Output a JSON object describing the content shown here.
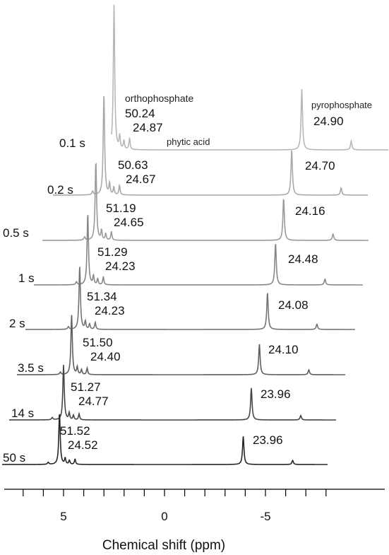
{
  "chart_data": {
    "type": "line",
    "xlabel": "Chemical shift (ppm)",
    "xlim": [
      8,
      -8
    ],
    "x_ticks": [
      5,
      0,
      -5
    ],
    "x_tick_labels": [
      "5",
      "0",
      "-5"
    ],
    "annotations": {
      "orthophosphate": "orthophosphate",
      "phytic_acid": "phytic acid",
      "pyrophosphate": "pyrophosphate"
    },
    "series": [
      {
        "name": "0.1 s",
        "color": "#b8b8b8",
        "ortho_ppm": 2.5,
        "pyro_ppm": -6.8,
        "ortho_pct": "50.24",
        "phytic_pct": "24.87",
        "pyro_pct": "24.90",
        "ortho_height": 1.0,
        "pyro_height": 0.42
      },
      {
        "name": "0.2 s",
        "color": "#a9a9a9",
        "ortho_ppm": 3.0,
        "pyro_ppm": -6.3,
        "ortho_pct": "50.63",
        "phytic_pct": "24.67",
        "pyro_pct": "24.70",
        "ortho_height": 0.82,
        "pyro_height": 0.37
      },
      {
        "name": "0.5 s",
        "color": "#9a9a9a",
        "ortho_ppm": 3.4,
        "pyro_ppm": -5.9,
        "ortho_pct": "51.19",
        "phytic_pct": "24.65",
        "pyro_pct": "24.16",
        "ortho_height": 0.73,
        "pyro_height": 0.39
      },
      {
        "name": "1 s",
        "color": "#878787",
        "ortho_ppm": 3.8,
        "pyro_ppm": -5.5,
        "ortho_pct": "51.29",
        "phytic_pct": "24.23",
        "pyro_pct": "24.48",
        "ortho_height": 0.73,
        "pyro_height": 0.43
      },
      {
        "name": "2 s",
        "color": "#747474",
        "ortho_ppm": 4.2,
        "pyro_ppm": -5.1,
        "ortho_pct": "51.34",
        "phytic_pct": "24.23",
        "pyro_pct": "24.08",
        "ortho_height": 0.72,
        "pyro_height": 0.42
      },
      {
        "name": "3.5 s",
        "color": "#5f5f5f",
        "ortho_ppm": 4.6,
        "pyro_ppm": -4.7,
        "ortho_pct": "51.50",
        "phytic_pct": "24.40",
        "pyro_pct": "24.10",
        "ortho_height": 0.74,
        "pyro_height": 0.38
      },
      {
        "name": "14 s",
        "color": "#454545",
        "ortho_ppm": 5.0,
        "pyro_ppm": -4.3,
        "ortho_pct": "51.27",
        "phytic_pct": "24.77",
        "pyro_pct": "23.96",
        "ortho_height": 0.74,
        "pyro_height": 0.43
      },
      {
        "name": "50 s",
        "color": "#262626",
        "ortho_ppm": 5.2,
        "pyro_ppm": -3.9,
        "ortho_pct": "51.52",
        "phytic_pct": "24.52",
        "pyro_pct": "23.96",
        "ortho_height": 0.77,
        "pyro_height": 0.42
      }
    ]
  }
}
